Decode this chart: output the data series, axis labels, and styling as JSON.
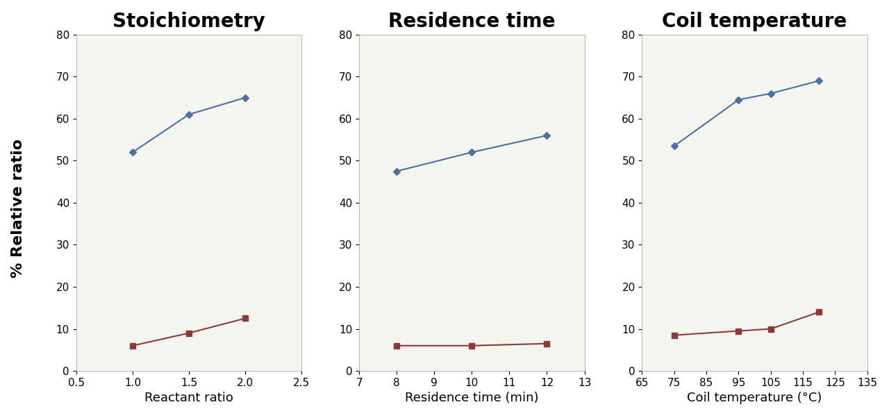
{
  "subplots": [
    {
      "title": "Stoichiometry",
      "xlabel": "Reactant ratio",
      "xlim": [
        0.5,
        2.5
      ],
      "xticks": [
        0.5,
        1.0,
        1.5,
        2.0,
        2.5
      ],
      "blue_x": [
        1.0,
        1.5,
        2.0
      ],
      "blue_y": [
        52.0,
        61.0,
        65.0
      ],
      "red_x": [
        1.0,
        1.5,
        2.0
      ],
      "red_y": [
        6.0,
        9.0,
        12.5
      ]
    },
    {
      "title": "Residence time",
      "xlabel": "Residence time (min)",
      "xlim": [
        7,
        13
      ],
      "xticks": [
        7,
        8,
        9,
        10,
        11,
        12,
        13
      ],
      "blue_x": [
        8,
        10,
        12
      ],
      "blue_y": [
        47.5,
        52.0,
        56.0
      ],
      "red_x": [
        8,
        10,
        12
      ],
      "red_y": [
        6.0,
        6.0,
        6.5
      ]
    },
    {
      "title": "Coil temperature",
      "xlabel": "Coil temperature (°C)",
      "xlim": [
        65,
        135
      ],
      "xticks": [
        65,
        75,
        85,
        95,
        105,
        115,
        125,
        135
      ],
      "blue_x": [
        75,
        95,
        105,
        120
      ],
      "blue_y": [
        53.5,
        64.5,
        66.0,
        69.0
      ],
      "red_x": [
        75,
        95,
        105,
        120
      ],
      "red_y": [
        8.5,
        9.5,
        10.0,
        14.0
      ]
    }
  ],
  "ylim": [
    0,
    80
  ],
  "yticks": [
    0,
    10,
    20,
    30,
    40,
    50,
    60,
    70,
    80
  ],
  "ylabel": "% Relative ratio",
  "blue_color": "#4a6fa5",
  "red_color": "#8b3a3a",
  "plot_bg_color": "#f5f5f0",
  "fig_bg_color": "#ffffff",
  "title_fontsize": 20,
  "label_fontsize": 13,
  "tick_fontsize": 11,
  "ylabel_fontsize": 16,
  "line_width": 1.5,
  "marker_size": 6
}
